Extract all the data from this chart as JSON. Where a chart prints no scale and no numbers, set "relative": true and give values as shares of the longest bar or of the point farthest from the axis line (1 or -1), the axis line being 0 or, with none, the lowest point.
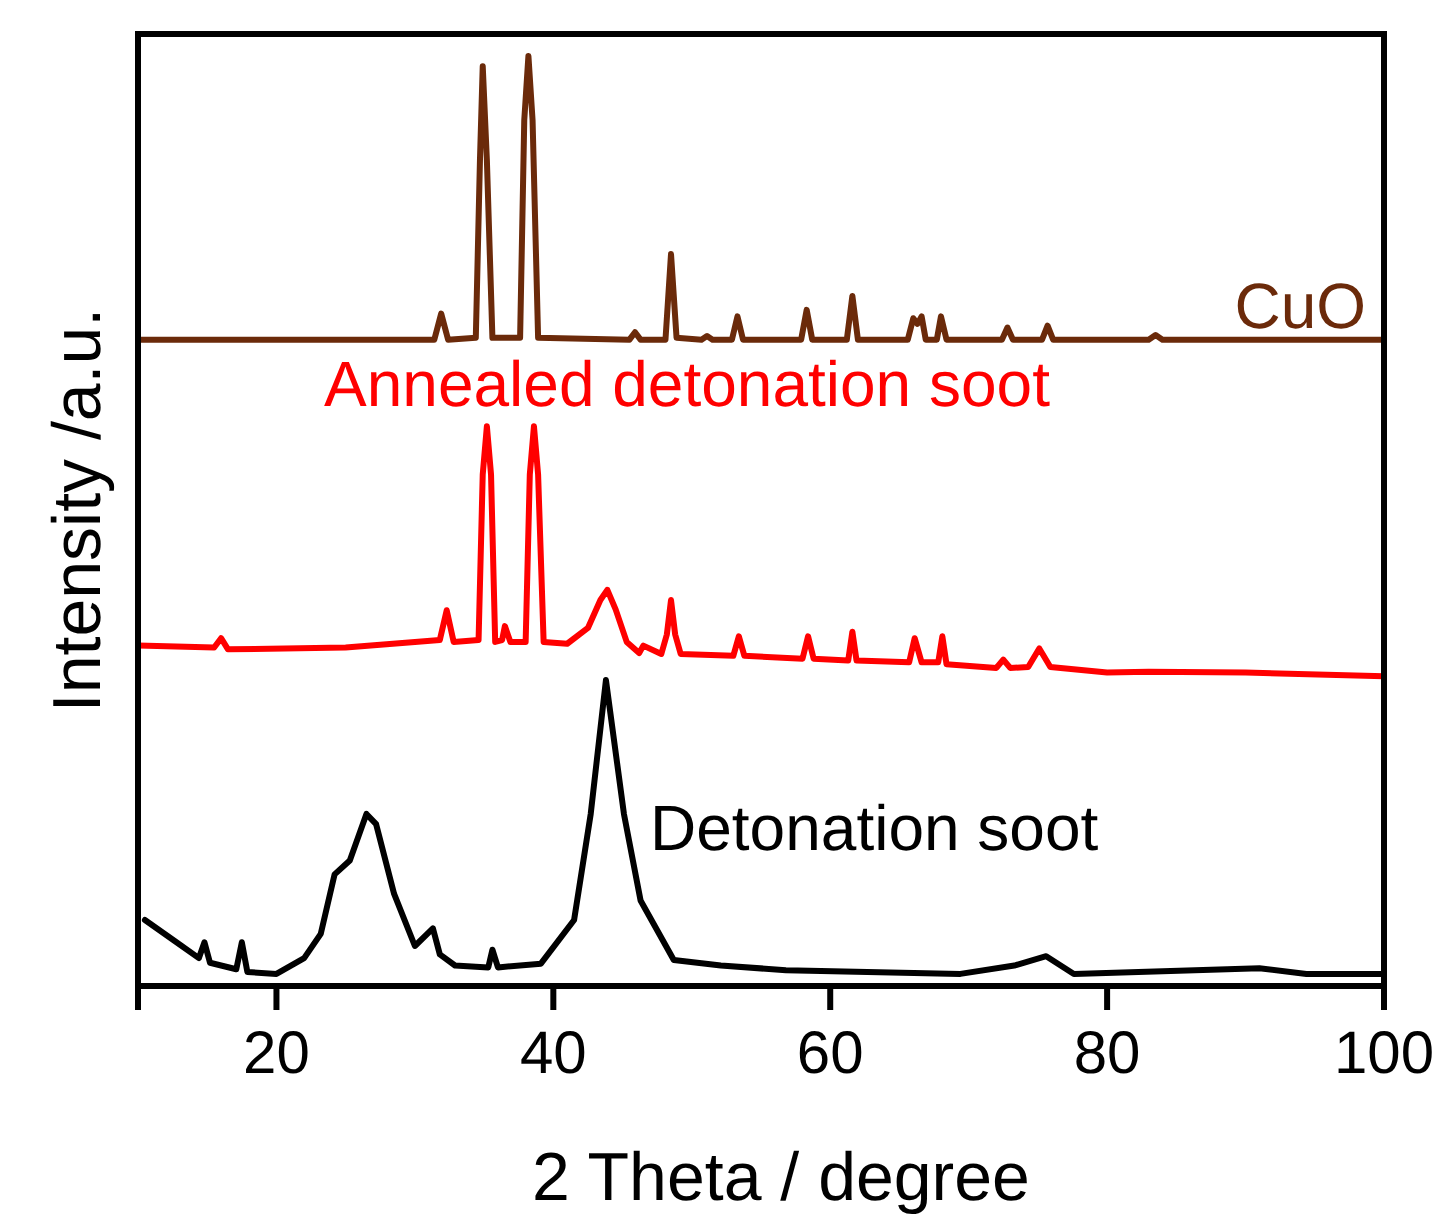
{
  "chart_data": {
    "type": "line",
    "xlabel": "2 Theta / degree",
    "ylabel": "Intensity /a.u.",
    "relative": true,
    "xlim": [
      10,
      100
    ],
    "xticks": [
      20,
      40,
      60,
      80,
      100
    ],
    "legend": false,
    "grid": false,
    "series": [
      {
        "name": "CuO",
        "color": "#6b2a0a",
        "x": [
          10,
          25,
          31.4,
          31.9,
          32.4,
          34.4,
          34.7,
          34.9,
          35.2,
          35.6,
          37.6,
          37.9,
          38.2,
          38.5,
          38.9,
          45.5,
          45.9,
          46.3,
          48.1,
          48.5,
          48.9,
          50.7,
          51.1,
          51.5,
          52.9,
          53.3,
          53.7,
          57.9,
          58.3,
          58.7,
          61.2,
          61.6,
          62.0,
          65.6,
          66.0,
          66.3,
          66.6,
          66.9,
          67.7,
          68.0,
          68.4,
          72.4,
          72.8,
          73.2,
          75.3,
          75.7,
          76.1,
          83,
          83.5,
          84,
          100
        ],
        "values": [
          0.695,
          0.695,
          0.695,
          0.723,
          0.695,
          0.697,
          0.888,
          0.989,
          0.888,
          0.697,
          0.697,
          0.931,
          1.0,
          0.931,
          0.697,
          0.695,
          0.703,
          0.695,
          0.695,
          0.787,
          0.697,
          0.695,
          0.699,
          0.695,
          0.695,
          0.72,
          0.695,
          0.695,
          0.727,
          0.695,
          0.695,
          0.742,
          0.695,
          0.695,
          0.718,
          0.712,
          0.72,
          0.695,
          0.695,
          0.72,
          0.695,
          0.695,
          0.708,
          0.695,
          0.695,
          0.71,
          0.695,
          0.695,
          0.7,
          0.695,
          0.695
        ]
      },
      {
        "name": "Annealed detonation soot",
        "color": "#ff0000",
        "x": [
          10,
          15.5,
          16.0,
          16.5,
          25,
          30,
          31.8,
          32.3,
          32.8,
          34.6,
          34.9,
          35.2,
          35.5,
          35.8,
          36.3,
          36.5,
          36.9,
          38.0,
          38.3,
          38.6,
          38.9,
          39.3,
          41,
          42.5,
          43.4,
          43.9,
          44.5,
          45.3,
          46.2,
          46.5,
          47.8,
          48.2,
          48.5,
          48.8,
          49.2,
          53.0,
          53.4,
          53.8,
          58.0,
          58.4,
          58.8,
          61.3,
          61.6,
          61.9,
          65.7,
          66.1,
          66.6,
          67.8,
          68.1,
          68.4,
          72,
          72.5,
          73,
          74.3,
          75.1,
          75.9,
          80,
          83,
          90,
          100
        ],
        "values": [
          0.366,
          0.364,
          0.374,
          0.362,
          0.364,
          0.37,
          0.372,
          0.404,
          0.37,
          0.372,
          0.55,
          0.602,
          0.55,
          0.37,
          0.372,
          0.387,
          0.37,
          0.37,
          0.55,
          0.602,
          0.55,
          0.37,
          0.368,
          0.385,
          0.415,
          0.426,
          0.405,
          0.37,
          0.358,
          0.366,
          0.357,
          0.378,
          0.415,
          0.378,
          0.357,
          0.355,
          0.376,
          0.355,
          0.352,
          0.376,
          0.352,
          0.35,
          0.381,
          0.35,
          0.348,
          0.374,
          0.348,
          0.348,
          0.376,
          0.346,
          0.342,
          0.351,
          0.342,
          0.343,
          0.363,
          0.343,
          0.337,
          0.338,
          0.337,
          0.333
        ]
      },
      {
        "name": "Detonation soot",
        "color": "#000000",
        "x": [
          10.5,
          12.6,
          14.4,
          14.8,
          15.2,
          17.1,
          17.5,
          17.9,
          20,
          22,
          23.2,
          24.2,
          25.3,
          26.5,
          27.2,
          28.5,
          30.0,
          31.3,
          31.8,
          32.9,
          35.3,
          35.6,
          36.0,
          39.1,
          41.5,
          42.7,
          43.8,
          45.1,
          46.3,
          48.7,
          52.1,
          56.8,
          69.4,
          73.3,
          75.6,
          77.6,
          91.0,
          94.4,
          100
        ],
        "values": [
          0.071,
          0.049,
          0.03,
          0.047,
          0.025,
          0.018,
          0.047,
          0.015,
          0.013,
          0.03,
          0.056,
          0.12,
          0.135,
          0.185,
          0.174,
          0.099,
          0.043,
          0.062,
          0.034,
          0.022,
          0.02,
          0.039,
          0.02,
          0.024,
          0.071,
          0.185,
          0.329,
          0.185,
          0.092,
          0.028,
          0.022,
          0.017,
          0.013,
          0.022,
          0.032,
          0.013,
          0.019,
          0.013,
          0.013
        ]
      }
    ]
  }
}
